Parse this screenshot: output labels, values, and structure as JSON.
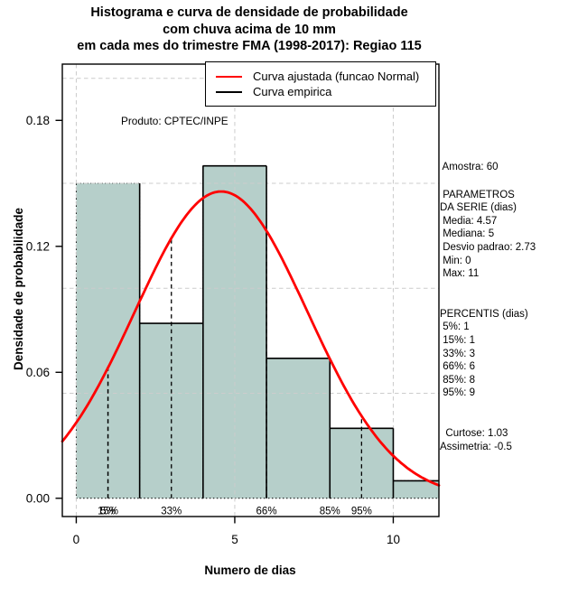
{
  "title": {
    "line1": "Histograma e curva de densidade de probabilidade",
    "line2": "com chuva acima de 10 mm",
    "line3": "em cada mes do trimestre FMA (1998-2017): Regiao 115"
  },
  "watermark": "Produto: CPTEC/INPE",
  "legend": {
    "fitted_label": "Curva ajustada (funcao Normal)",
    "empirical_label": "Curva empirica",
    "fitted_color": "#ff0000",
    "empirical_color": "#000000"
  },
  "axes": {
    "y_label": "Densidade de probabilidade",
    "x_label": "Numero de dias"
  },
  "panel": {
    "amostra": " Amostra: 60",
    "params_title": " PARAMETROS",
    "params_subtitle": "DA SERIE (dias)",
    "media": " Media: 4.57",
    "mediana": " Mediana: 5",
    "desvio": " Desvio padrao: 2.73",
    "min": " Min: 0",
    "max": " Max: 11",
    "percentis_title": "PERCENTIS (dias)",
    "p5": " 5%: 1",
    "p15": " 15%: 1",
    "p33": " 33%: 3",
    "p66": " 66%: 6",
    "p85": " 85%: 8",
    "p95": " 95%: 9",
    "curtose": "  Curtose: 1.03",
    "assimetria": "Assimetria: -0.5"
  },
  "chart_data": {
    "type": "bar",
    "subtype": "histogram_with_density_curves",
    "xlabel": "Numero de dias",
    "ylabel": "Densidade de probabilidade",
    "bin_breaks": [
      0,
      2,
      4,
      6,
      8,
      10,
      12
    ],
    "bin_counts": [
      18,
      10,
      19,
      8,
      4,
      1
    ],
    "bin_densities": [
      0.15,
      0.08333,
      0.15833,
      0.06667,
      0.03333,
      0.00833
    ],
    "sample_size": 60,
    "normal_curve": {
      "mean": 4.57,
      "sd": 2.73
    },
    "empirical_step": {
      "verticals": [
        {
          "x": 2,
          "to": 0.15
        },
        {
          "x": 4,
          "to": 0.15833
        },
        {
          "x": 6,
          "to": 0.15833
        },
        {
          "x": 8,
          "to": 0.06667
        },
        {
          "x": 10,
          "to": 0.03333
        }
      ],
      "tops": [
        {
          "x1": 2,
          "x2": 4,
          "y": 0.08333
        },
        {
          "x1": 4,
          "x2": 6,
          "y": 0.15833
        },
        {
          "x1": 6,
          "x2": 8,
          "y": 0.06667
        },
        {
          "x1": 8,
          "x2": 10,
          "y": 0.03333
        },
        {
          "x1": 10,
          "x2": 11.44,
          "y": 0.00833
        }
      ]
    },
    "percentiles": [
      {
        "label": "15%",
        "x": 1
      },
      {
        "label": "5%",
        "x": 1
      },
      {
        "label": "33%",
        "x": 3
      },
      {
        "label": "66%",
        "x": 6
      },
      {
        "label": "85%",
        "x": 8
      },
      {
        "label": "95%",
        "x": 9
      }
    ],
    "xlim": [
      -0.44,
      11.88
    ],
    "ylim": [
      -0.0087,
      0.2068
    ],
    "x_ticks": [
      {
        "value": 0,
        "label": "0"
      },
      {
        "value": 5,
        "label": "5"
      },
      {
        "value": 10,
        "label": "10"
      }
    ],
    "y_ticks": [
      {
        "value": 0,
        "label": "0.00"
      },
      {
        "value": 0.06,
        "label": "0.06"
      },
      {
        "value": 0.12,
        "label": "0.12"
      },
      {
        "value": 0.18,
        "label": "0.18"
      }
    ],
    "x_gridlines": [
      0,
      5,
      10
    ],
    "y_gridlines": [
      0.05,
      0.1,
      0.15,
      0.2
    ],
    "grid_on": true,
    "legend_position": "top",
    "colors": {
      "bar_fill": "#b6cfca",
      "bar_border": "#000000",
      "fitted_curve": "#ff0000",
      "empirical_curve": "#000000",
      "gridline": "#cccccc"
    }
  }
}
